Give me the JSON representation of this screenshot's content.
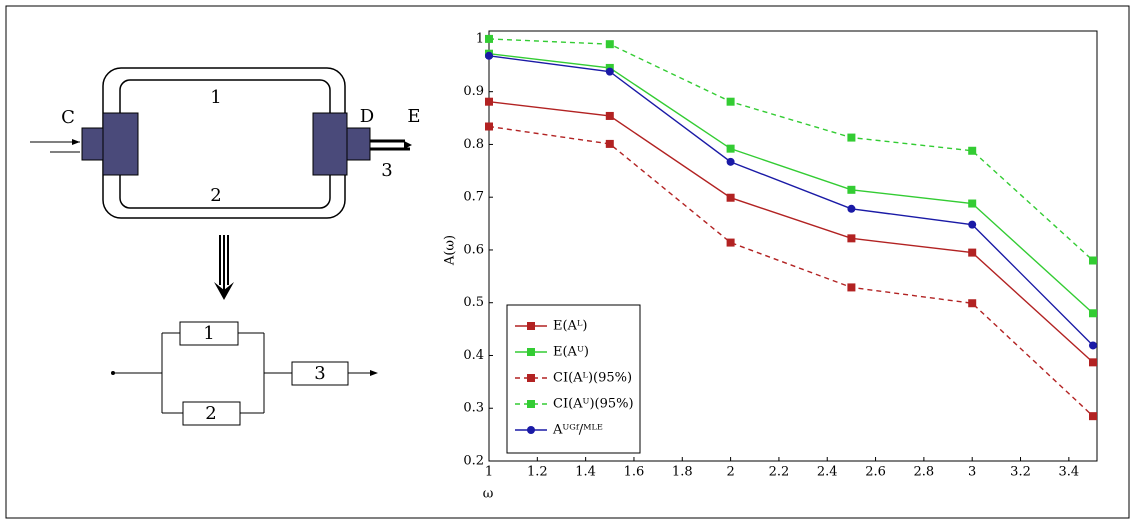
{
  "diagram": {
    "ring_labels": [
      "C",
      "D",
      "E",
      "1",
      "2",
      "3"
    ],
    "block_labels": [
      "1",
      "2",
      "3"
    ]
  },
  "chart_data": {
    "type": "line",
    "x_label": "ω",
    "y_label": "A(ω)",
    "x": [
      1,
      1.5,
      2,
      2.5,
      3,
      3.5
    ],
    "xlim": [
      1,
      3.5
    ],
    "xticks": [
      1,
      1.2,
      1.4,
      1.6,
      1.8,
      2,
      2.2,
      2.4,
      2.6,
      2.8,
      3,
      3.2,
      3.4
    ],
    "ylim": [
      0.2,
      1.015
    ],
    "yticks": [
      0.2,
      0.3,
      0.4,
      0.5,
      0.6,
      0.7,
      0.8,
      0.9,
      1
    ],
    "legend": "lower left",
    "series": [
      {
        "name": "E(Aᴸ)",
        "color": "#b22222",
        "linestyle": "solid",
        "marker": "square",
        "values": [
          0.881,
          0.854,
          0.699,
          0.622,
          0.595,
          0.387
        ]
      },
      {
        "name": "E(Aᵁ)",
        "color": "#33cc33",
        "linestyle": "solid",
        "marker": "square",
        "values": [
          0.972,
          0.945,
          0.792,
          0.714,
          0.688,
          0.48
        ]
      },
      {
        "name": "CI(Aᴸ)(95%)",
        "color": "#b22222",
        "linestyle": "dashed",
        "marker": "square",
        "values": [
          0.834,
          0.801,
          0.614,
          0.529,
          0.499,
          0.285
        ]
      },
      {
        "name": "CI(Aᵁ)(95%)",
        "color": "#33cc33",
        "linestyle": "dashed",
        "marker": "square",
        "values": [
          1.0,
          0.99,
          0.881,
          0.813,
          0.788,
          0.58
        ]
      },
      {
        "name": "Aᵁᴳᶠ/ᴹᴸᴱ",
        "color": "#1a1aa6",
        "linestyle": "solid",
        "marker": "circle",
        "values": [
          0.968,
          0.938,
          0.767,
          0.678,
          0.648,
          0.419
        ]
      }
    ]
  }
}
